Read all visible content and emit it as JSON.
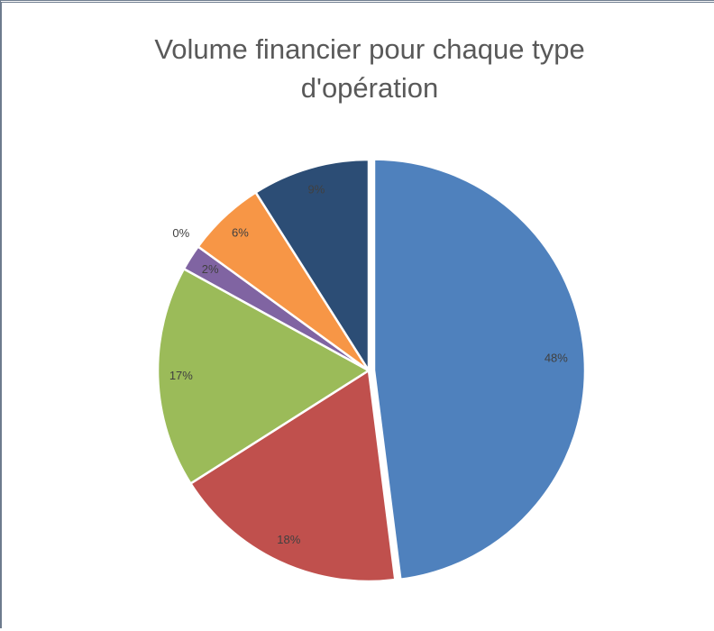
{
  "chart_data": {
    "type": "pie",
    "title": "Volume financier pour chaque type d'opération",
    "values": [
      48,
      18,
      17,
      2,
      0,
      6,
      9
    ],
    "value_labels": [
      "48%",
      "18%",
      "17%",
      "2%",
      "0%",
      "6%",
      "9%"
    ],
    "colors": [
      "#4f81bd",
      "#c0504d",
      "#9bbb59",
      "#8064a2",
      "#4bacc6",
      "#f79646",
      "#2c4d75"
    ]
  }
}
